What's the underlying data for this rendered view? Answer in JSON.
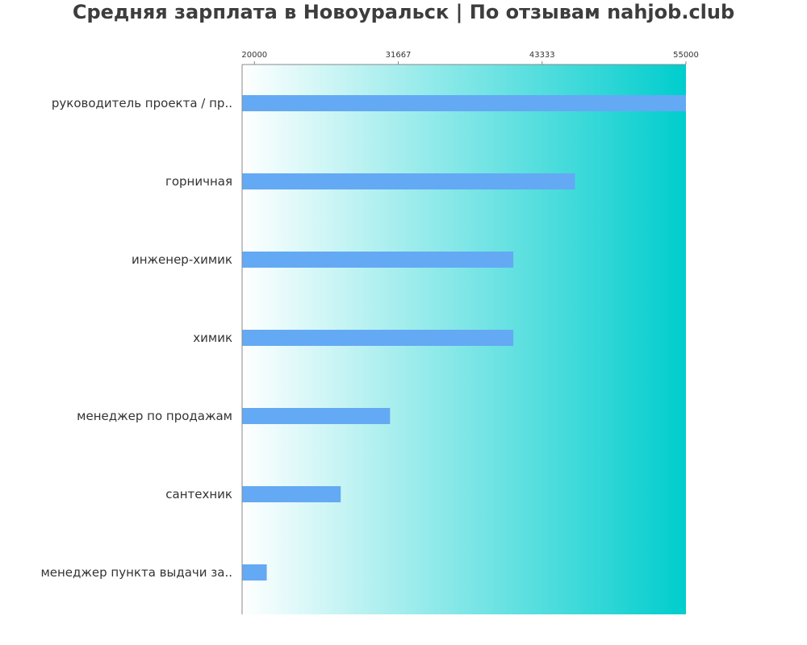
{
  "chart_data": {
    "type": "bar",
    "orientation": "horizontal",
    "title": "Средняя зарплата в Новоуральск | По отзывам nahjob.club",
    "categories": [
      "руководитель проекта / пр..",
      "горничная",
      "инженер-химик",
      "химик",
      "менеджер по продажам",
      "сантехник",
      "менеджер пункта выдачи за.."
    ],
    "values": [
      55000,
      46000,
      41000,
      41000,
      31000,
      27000,
      21000
    ],
    "xlim": [
      19000,
      55000
    ],
    "ticks": [
      "20000",
      "31667",
      "43333",
      "55000"
    ],
    "tick_values": [
      20000,
      31667,
      43333,
      55000
    ],
    "axis_position": "top",
    "grid": false,
    "legend": "none",
    "colors": {
      "bar": "#64a9f4",
      "background_start": "#ffffff",
      "background_end": "#00cdcd",
      "axis": "#888888",
      "text": "#3d3d3d"
    }
  }
}
